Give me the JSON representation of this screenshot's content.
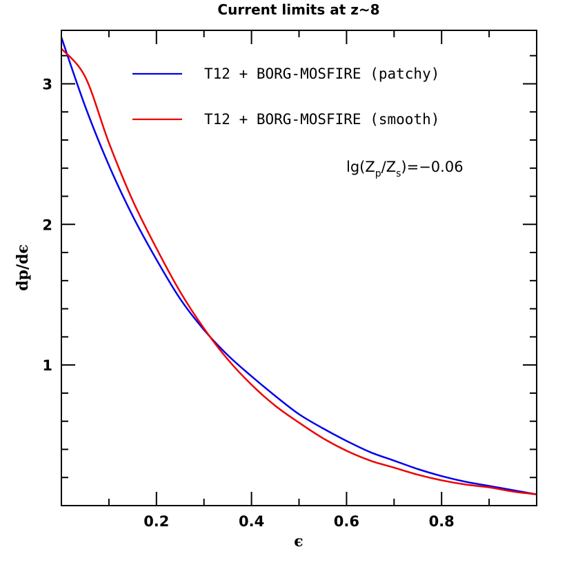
{
  "chart_data": {
    "type": "line",
    "title": "Current limits at z~8",
    "xlabel": "ϵ",
    "ylabel": "dp/dϵ",
    "xlim": [
      0.0,
      1.0
    ],
    "ylim": [
      0.0,
      3.38
    ],
    "x_major_ticks": [
      0.2,
      0.4,
      0.6,
      0.8
    ],
    "x_tick_labels": [
      "0.2",
      "0.4",
      "0.6",
      "0.8"
    ],
    "x_minor_ticks": [
      0.1,
      0.3,
      0.5,
      0.7,
      0.9
    ],
    "y_major_ticks": [
      1,
      2,
      3
    ],
    "y_tick_labels": [
      "1",
      "2",
      "3"
    ],
    "y_minor_ticks": [
      0.2,
      0.4,
      0.6,
      0.8,
      1.2,
      1.4,
      1.6,
      1.8,
      2.2,
      2.4,
      2.6,
      2.8,
      3.2
    ],
    "grid": false,
    "legend_position": "top-right",
    "annotation": {
      "prefix": "lg(Z",
      "sub1": "p",
      "middle": "/Z",
      "sub2": "s",
      "suffix": ")=−0.06"
    },
    "series": [
      {
        "name": "T12 + BORG-MOSFIRE (patchy)",
        "color": "#0000ee",
        "x": [
          0.0,
          0.05,
          0.1,
          0.15,
          0.2,
          0.25,
          0.3,
          0.35,
          0.4,
          0.45,
          0.5,
          0.55,
          0.6,
          0.65,
          0.7,
          0.75,
          0.8,
          0.85,
          0.9,
          0.95,
          1.0
        ],
        "y": [
          3.33,
          2.84,
          2.42,
          2.06,
          1.75,
          1.47,
          1.25,
          1.07,
          0.92,
          0.78,
          0.65,
          0.55,
          0.46,
          0.38,
          0.32,
          0.26,
          0.21,
          0.17,
          0.14,
          0.11,
          0.08
        ]
      },
      {
        "name": "T12 + BORG-MOSFIRE (smooth)",
        "color": "#ee0000",
        "x": [
          0.0,
          0.05,
          0.1,
          0.15,
          0.2,
          0.25,
          0.3,
          0.35,
          0.4,
          0.45,
          0.5,
          0.55,
          0.6,
          0.65,
          0.7,
          0.75,
          0.8,
          0.85,
          0.9,
          0.95,
          1.0
        ],
        "y": [
          3.25,
          3.05,
          2.58,
          2.17,
          1.83,
          1.52,
          1.26,
          1.04,
          0.86,
          0.71,
          0.59,
          0.48,
          0.39,
          0.32,
          0.27,
          0.22,
          0.18,
          0.15,
          0.13,
          0.1,
          0.08
        ]
      }
    ]
  }
}
